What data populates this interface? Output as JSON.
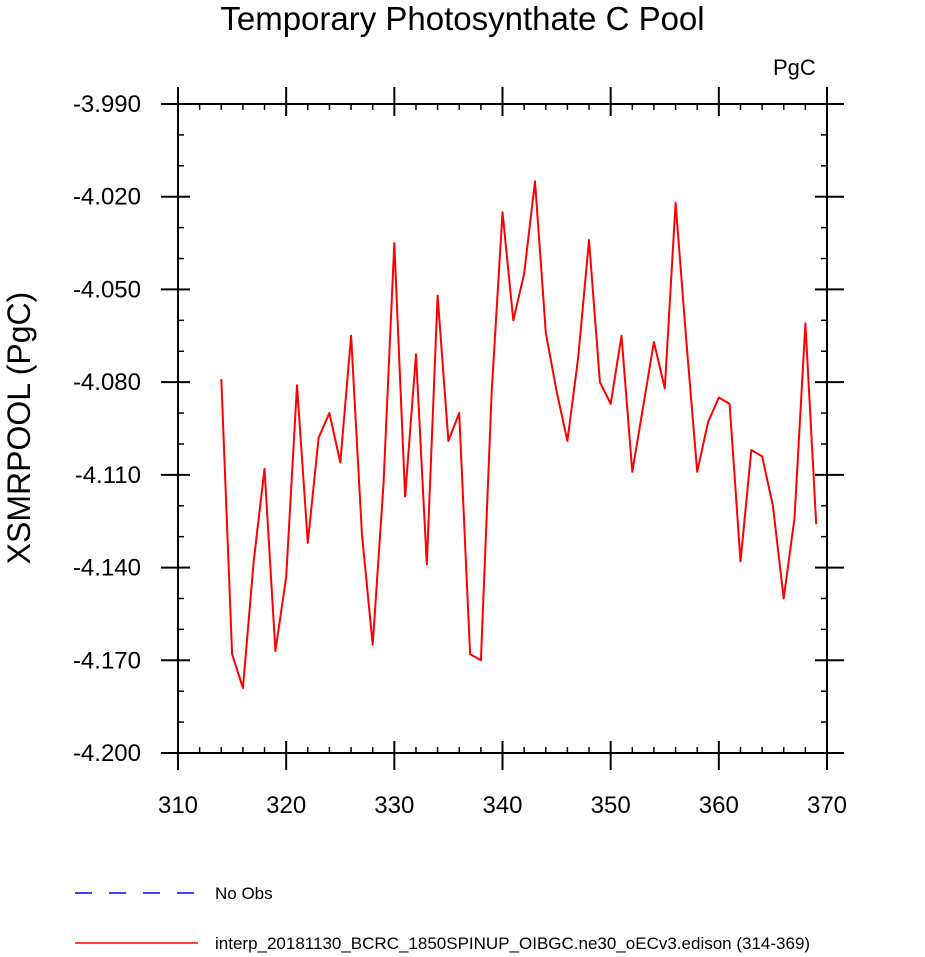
{
  "title": "Temporary Photosynthate C Pool",
  "units_label": "PgC",
  "chart_data": {
    "type": "line",
    "title": "Temporary Photosynthate C Pool",
    "xlabel": "",
    "ylabel": "XSMRPOOL  (PgC)",
    "units": "PgC",
    "xlim": [
      310,
      370
    ],
    "ylim": [
      -4.2,
      -3.99
    ],
    "x_ticks": [
      310,
      320,
      330,
      340,
      350,
      360,
      370
    ],
    "y_ticks": [
      -4.2,
      -4.17,
      -4.14,
      -4.11,
      -4.08,
      -4.05,
      -4.02,
      -3.99
    ],
    "y_tick_labels": [
      "-4.200",
      "-4.170",
      "-4.140",
      "-4.110",
      "-4.080",
      "-4.050",
      "-4.020",
      "-3.990"
    ],
    "series": [
      {
        "name": "interp_20181130_BCRC_1850SPINUP_OIBGC.ne30_oECv3.edison (314-369)",
        "color": "#ff0000",
        "style": "solid",
        "x": [
          314,
          315,
          316,
          317,
          318,
          319,
          320,
          321,
          322,
          323,
          324,
          325,
          326,
          327,
          328,
          329,
          330,
          331,
          332,
          333,
          334,
          335,
          336,
          337,
          338,
          339,
          340,
          341,
          342,
          343,
          344,
          345,
          346,
          347,
          348,
          349,
          350,
          351,
          352,
          353,
          354,
          355,
          356,
          357,
          358,
          359,
          360,
          361,
          362,
          363,
          364,
          365,
          366,
          367,
          368,
          369
        ],
        "values": [
          -4.079,
          -4.168,
          -4.179,
          -4.138,
          -4.108,
          -4.167,
          -4.143,
          -4.081,
          -4.132,
          -4.098,
          -4.09,
          -4.106,
          -4.065,
          -4.129,
          -4.165,
          -4.113,
          -4.035,
          -4.117,
          -4.071,
          -4.139,
          -4.052,
          -4.099,
          -4.09,
          -4.168,
          -4.17,
          -4.083,
          -4.025,
          -4.06,
          -4.045,
          -4.015,
          -4.064,
          -4.083,
          -4.099,
          -4.072,
          -4.034,
          -4.08,
          -4.087,
          -4.065,
          -4.109,
          -4.088,
          -4.067,
          -4.082,
          -4.022,
          -4.067,
          -4.109,
          -4.093,
          -4.085,
          -4.087,
          -4.138,
          -4.102,
          -4.104,
          -4.12,
          -4.15,
          -4.124,
          -4.061,
          -4.126
        ]
      },
      {
        "name": "No Obs",
        "color": "#0000ff",
        "style": "dashed",
        "x": [],
        "values": []
      }
    ]
  }
}
